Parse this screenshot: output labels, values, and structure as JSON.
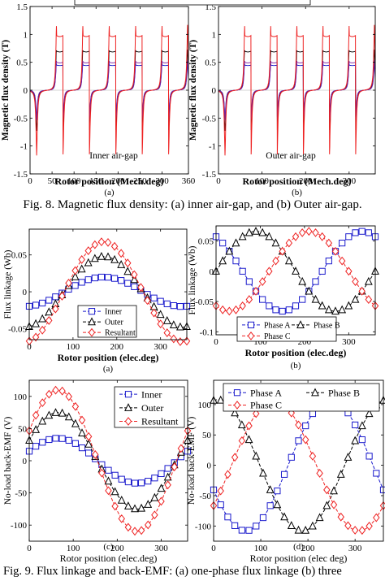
{
  "figure8_caption": "Fig. 8. Magnetic flux density: (a) inner air-gap, and (b) Outer air-gap.",
  "figure9_caption": "Fig. 9. Flux linkage and back-EMF: (a) one-phase flux linkage (b) three",
  "chart_data": [
    {
      "id": "8a",
      "type": "line",
      "panel_label": "(a)",
      "ylabel": "Magnetic flux density (T)",
      "xlabel": "Rotor position (Mech.deg)",
      "annotation": "Inner air-gap",
      "xlim": [
        0,
        360
      ],
      "ylim": [
        -1.5,
        1.5
      ],
      "xticks": [
        0,
        50,
        100,
        150,
        200,
        250,
        300,
        360
      ],
      "yticks": [
        -1.5,
        -1,
        -0.5,
        0,
        0.5,
        1,
        1.5
      ],
      "ytick_labels": [
        "-1.5",
        "-1",
        "-0.5",
        "0",
        "0.5",
        "1",
        "1.5"
      ],
      "colors": [
        "#1a1acc",
        "#000000",
        "#7a1fa0",
        "#ee2222"
      ],
      "peaks": [
        {
          "x": 15,
          "sign": -1
        },
        {
          "x": 60,
          "sign": 1
        },
        {
          "x": 75,
          "sign": -1
        },
        {
          "x": 120,
          "sign": 1
        },
        {
          "x": 135,
          "sign": -1
        },
        {
          "x": 180,
          "sign": 1
        },
        {
          "x": 195,
          "sign": -1
        },
        {
          "x": 240,
          "sign": 1
        },
        {
          "x": 255,
          "sign": -1
        },
        {
          "x": 300,
          "sign": 1
        },
        {
          "x": 315,
          "sign": -1
        },
        {
          "x": 358,
          "sign": 1
        }
      ],
      "series_peaks": [
        0.5,
        0.75,
        0.55,
        1.2
      ],
      "plateaus": [
        0.45,
        0.7,
        0.5,
        0.98
      ]
    },
    {
      "id": "8b",
      "type": "line",
      "panel_label": "(b)",
      "ylabel": "Magnetic flux density (T)",
      "xlabel": "Rotor position (Mech.deg)",
      "annotation": "Outer air-gap",
      "xlim": [
        0,
        360
      ],
      "ylim": [
        -1.5,
        1.5
      ],
      "xticks": [
        0,
        100,
        200,
        300
      ],
      "yticks": [
        -1.5,
        -1,
        -0.5,
        0,
        0.5,
        1,
        1.5
      ],
      "ytick_labels": [
        "-1.5",
        "-1",
        "-0.5",
        "0",
        "0.5",
        "1",
        "1.5"
      ],
      "colors": [
        "#1a1acc",
        "#000000",
        "#7a1fa0",
        "#ee2222"
      ],
      "peaks": [
        {
          "x": 15,
          "sign": -1
        },
        {
          "x": 60,
          "sign": 1
        },
        {
          "x": 75,
          "sign": -1
        },
        {
          "x": 120,
          "sign": 1
        },
        {
          "x": 135,
          "sign": -1
        },
        {
          "x": 180,
          "sign": 1
        },
        {
          "x": 195,
          "sign": -1
        },
        {
          "x": 240,
          "sign": 1
        },
        {
          "x": 255,
          "sign": -1
        },
        {
          "x": 300,
          "sign": 1
        },
        {
          "x": 315,
          "sign": -1
        },
        {
          "x": 358,
          "sign": 1
        }
      ],
      "series_peaks": [
        0.5,
        0.75,
        0.55,
        1.2
      ],
      "plateaus": [
        0.45,
        0.7,
        0.5,
        0.98
      ]
    },
    {
      "id": "9a",
      "type": "line",
      "panel_label": "(a)",
      "ylabel": "Flux linkage (Wb)",
      "xlabel": "Rotor position (elec.deg)",
      "xlim": [
        0,
        360
      ],
      "ylim": [
        -0.065,
        0.085
      ],
      "xticks": [
        0,
        100,
        200,
        300
      ],
      "yticks": [
        -0.05,
        0,
        0.05
      ],
      "ytick_labels": [
        "-0.05",
        "0",
        "0.05"
      ],
      "legend_position": "bottom-left",
      "series": [
        {
          "name": "Inner",
          "color": "#1a1acc",
          "marker": "square",
          "amplitude": 0.02,
          "phase_deg": 170
        },
        {
          "name": "Outer",
          "color": "#000000",
          "marker": "triangle",
          "amplitude": 0.048,
          "phase_deg": 170
        },
        {
          "name": "Resultant",
          "color": "#ee2222",
          "marker": "diamond",
          "amplitude": 0.068,
          "phase_deg": 170
        }
      ]
    },
    {
      "id": "9b",
      "type": "line",
      "panel_label": "(b)",
      "ylabel": "Flux linkage (Wb)",
      "xlabel": "Rotor position (elec.deg)",
      "xlim": [
        0,
        360
      ],
      "ylim": [
        -0.105,
        0.075
      ],
      "xticks": [
        0,
        100,
        200,
        300
      ],
      "yticks": [
        -0.1,
        -0.05,
        0,
        0.05
      ],
      "ytick_labels": [
        "-0.1",
        "-0.05",
        "0",
        "0.05"
      ],
      "legend_position": "bottom-left",
      "series": [
        {
          "name": "Phase A",
          "color": "#1a1acc",
          "marker": "square",
          "amplitude": 0.066,
          "phase_deg": 330
        },
        {
          "name": "Phase B",
          "color": "#000000",
          "marker": "triangle",
          "amplitude": 0.066,
          "phase_deg": 90
        },
        {
          "name": "Phase C",
          "color": "#ee2222",
          "marker": "diamond",
          "amplitude": 0.066,
          "phase_deg": 210
        }
      ]
    },
    {
      "id": "9c",
      "type": "line",
      "panel_label": "(c)",
      "ylabel": "No-load back-EMF (V)",
      "xlabel": "Rotor position (elec.deg)",
      "xlim": [
        0,
        360
      ],
      "ylim": [
        -125,
        125
      ],
      "xticks": [
        0,
        100,
        200,
        300
      ],
      "yticks": [
        -100,
        -50,
        0,
        50,
        100
      ],
      "ytick_labels": [
        "-100",
        "-50",
        "0",
        "50",
        "100"
      ],
      "legend_position": "top-right",
      "series": [
        {
          "name": "Inner",
          "color": "#1a1acc",
          "marker": "square",
          "amplitude": 35,
          "phase_deg": 65
        },
        {
          "name": "Outer",
          "color": "#000000",
          "marker": "triangle",
          "amplitude": 75,
          "phase_deg": 65
        },
        {
          "name": "Resultant",
          "color": "#ee2222",
          "marker": "diamond",
          "amplitude": 110,
          "phase_deg": 65
        }
      ]
    },
    {
      "id": "9d",
      "type": "line",
      "panel_label": "(d)",
      "ylabel": "No-load back-EMF (V)",
      "xlabel": "Rotor position (elec deg)",
      "xlim": [
        0,
        360
      ],
      "ylim": [
        -125,
        140
      ],
      "xticks": [
        0,
        100,
        200,
        300
      ],
      "yticks": [
        -100,
        -50,
        0,
        50,
        100
      ],
      "ytick_labels": [
        "-100",
        "-50",
        "0",
        "50",
        "100"
      ],
      "legend_position": "top",
      "series": [
        {
          "name": "Phase A",
          "color": "#1a1acc",
          "marker": "square",
          "amplitude": 108,
          "phase_deg": 248
        },
        {
          "name": "Phase B",
          "color": "#000000",
          "marker": "triangle",
          "amplitude": 108,
          "phase_deg": 8
        },
        {
          "name": "Phase C",
          "color": "#ee2222",
          "marker": "diamond",
          "amplitude": 108,
          "phase_deg": 128
        }
      ]
    }
  ]
}
